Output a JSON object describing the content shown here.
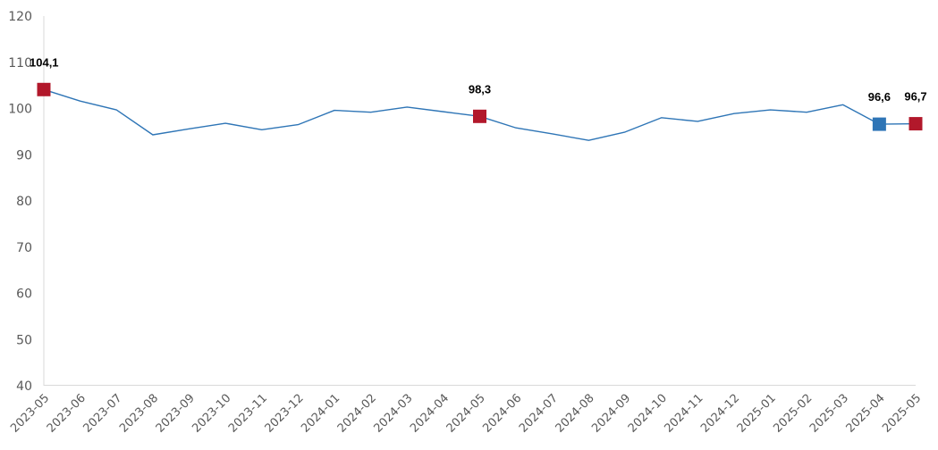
{
  "chart_data": {
    "type": "line",
    "title": "",
    "xlabel": "",
    "ylabel": "",
    "ylim": [
      40,
      120
    ],
    "yticks": [
      40,
      50,
      60,
      70,
      80,
      90,
      100,
      110,
      120
    ],
    "grid": false,
    "legend": "none",
    "x": [
      "2023-05",
      "2023-06",
      "2023-07",
      "2023-08",
      "2023-09",
      "2023-10",
      "2023-11",
      "2023-12",
      "2024-01",
      "2024-02",
      "2024-03",
      "2024-04",
      "2024-05",
      "2024-06",
      "2024-07",
      "2024-08",
      "2024-09",
      "2024-10",
      "2024-11",
      "2024-12",
      "2025-01",
      "2025-02",
      "2025-03",
      "2025-04",
      "2025-05"
    ],
    "series": [
      {
        "values": [
          104.1,
          101.6,
          99.7,
          94.3,
          95.6,
          96.8,
          95.4,
          96.5,
          99.6,
          99.2,
          100.3,
          99.3,
          98.3,
          95.8,
          94.5,
          93.1,
          94.9,
          98.0,
          97.2,
          98.9,
          99.7,
          99.2,
          100.8,
          96.6,
          96.7
        ],
        "color": "#2e75b6"
      }
    ],
    "highlights": [
      {
        "x": "2023-05",
        "label": "104,1",
        "color": "#b2182b"
      },
      {
        "x": "2024-05",
        "label": "98,3",
        "color": "#b2182b"
      },
      {
        "x": "2025-04",
        "label": "96,6",
        "color": "#2e75b6"
      },
      {
        "x": "2025-05",
        "label": "96,7",
        "color": "#b2182b"
      }
    ]
  }
}
